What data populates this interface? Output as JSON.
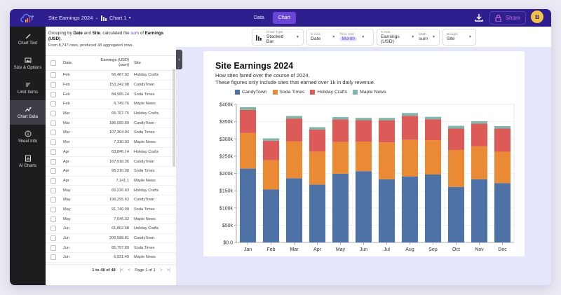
{
  "topbar": {
    "logo_icon": "cloud-chart-logo-icon",
    "sheet_name": "Site Earnings 2024",
    "chart_name": "Chart 1",
    "mode_tabs": [
      {
        "label": "Data",
        "active": false
      },
      {
        "label": "Chart",
        "active": true
      }
    ],
    "share_label": "Share",
    "avatar_initial": "B"
  },
  "sidebar": {
    "items": [
      {
        "label": "Chart Text",
        "icon": "pencil-icon",
        "active": false
      },
      {
        "label": "Size & Options",
        "icon": "image-icon",
        "active": false
      },
      {
        "label": "Limit Items",
        "icon": "filter-lines-icon",
        "active": false
      },
      {
        "label": "Chart Data",
        "icon": "scatter-icon",
        "active": true
      },
      {
        "label": "Sheet Info",
        "icon": "info-icon",
        "active": false
      },
      {
        "label": "AI Charts",
        "icon": "ai-chart-icon",
        "active": false
      }
    ]
  },
  "data_panel": {
    "desc_prefix": "Grouping by ",
    "desc_group1": "Date",
    "desc_and": " and ",
    "desc_group2": "Site",
    "desc_calc": ", calculated the ",
    "desc_func": "sum",
    "desc_of": " of ",
    "desc_field": "Earnings (USD)",
    "desc_end": ".",
    "rows_summary": "From 8,747 rows, produced 48 aggregated rows.",
    "columns": {
      "date": "Date",
      "value_line1": "Earnings (USD)",
      "value_line2": "(sum)",
      "site": "Site"
    },
    "rows": [
      {
        "date": "Feb",
        "value": "56,487.02",
        "site": "Holiday Crafts"
      },
      {
        "date": "Feb",
        "value": "153,342.98",
        "site": "CandyTown"
      },
      {
        "date": "Feb",
        "value": "84,985.24",
        "site": "Soda Times"
      },
      {
        "date": "Feb",
        "value": "6,749.76",
        "site": "Maple News"
      },
      {
        "date": "Mar",
        "value": "65,767.75",
        "site": "Holiday Crafts"
      },
      {
        "date": "Mar",
        "value": "186,089.89",
        "site": "CandyTown"
      },
      {
        "date": "Mar",
        "value": "107,304.94",
        "site": "Soda Times"
      },
      {
        "date": "Mar",
        "value": "7,310.03",
        "site": "Maple News"
      },
      {
        "date": "Apr",
        "value": "63,846.14",
        "site": "Holiday Crafts"
      },
      {
        "date": "Apr",
        "value": "167,918.36",
        "site": "CandyTown"
      },
      {
        "date": "Apr",
        "value": "95,210.08",
        "site": "Soda Times"
      },
      {
        "date": "Apr",
        "value": "7,141.1",
        "site": "Maple News"
      },
      {
        "date": "May",
        "value": "65,226.63",
        "site": "Holiday Crafts"
      },
      {
        "date": "May",
        "value": "199,255.63",
        "site": "CandyTown"
      },
      {
        "date": "May",
        "value": "91,740.99",
        "site": "Soda Times"
      },
      {
        "date": "May",
        "value": "7,046.32",
        "site": "Maple News"
      },
      {
        "date": "Jun",
        "value": "61,802.68",
        "site": "Holiday Crafts"
      },
      {
        "date": "Jun",
        "value": "206,588.81",
        "site": "CandyTown"
      },
      {
        "date": "Jun",
        "value": "85,797.89",
        "site": "Soda Times"
      },
      {
        "date": "Jun",
        "value": "6,931.49",
        "site": "Maple News"
      }
    ],
    "pager": {
      "range": "1 to 48 of 48",
      "page": "Page 1 of 1"
    }
  },
  "toolbar": {
    "chart_type": {
      "label": "Chart Type",
      "value": "Stacked Bar"
    },
    "x_axis": {
      "label": "X-Axis",
      "value": "Date"
    },
    "time_unit": {
      "label": "Time Unit",
      "value": "Month"
    },
    "y_axis": {
      "label": "Y-Axis",
      "value": "Earnings (USD)"
    },
    "math": {
      "label": "Math",
      "value": "sum"
    },
    "groups": {
      "label": "Groups",
      "value": "Site"
    }
  },
  "chart_data": {
    "type": "bar",
    "stacked": true,
    "title": "Site Earnings 2024",
    "subtitle_line1": "How sites fared over the course of 2024.",
    "subtitle_line2": "These figures only include sites that earned over 1k in daily revenue.",
    "xlabel": "",
    "ylabel": "",
    "categories": [
      "Jan",
      "Feb",
      "Mar",
      "Apr",
      "May",
      "Jun",
      "Jul",
      "Aug",
      "Sep",
      "Oct",
      "Nov",
      "Dec"
    ],
    "ylim": [
      0,
      400000
    ],
    "yticks": [
      0,
      50000,
      100000,
      150000,
      200000,
      250000,
      300000,
      350000,
      400000
    ],
    "ytick_labels": [
      "$0.0",
      "$50k",
      "$100k",
      "$150k",
      "$200k",
      "$250k",
      "$300k",
      "$350k",
      "$400k"
    ],
    "grid": true,
    "legend_position": "top",
    "series": [
      {
        "name": "CandyTown",
        "color": "#4e72a6",
        "values": [
          214000,
          153343,
          186090,
          167918,
          199256,
          206589,
          183000,
          191000,
          197000,
          161000,
          183000,
          172000
        ]
      },
      {
        "name": "Soda Times",
        "color": "#ea8a34",
        "values": [
          103000,
          84985,
          107305,
          95210,
          91741,
          85798,
          107000,
          106000,
          99000,
          107000,
          96000,
          91000
        ]
      },
      {
        "name": "Holiday Crafts",
        "color": "#dc5a58",
        "values": [
          67000,
          56487,
          65768,
          63846,
          65227,
          61803,
          64000,
          70000,
          61000,
          62000,
          65000,
          67000
        ]
      },
      {
        "name": "Maple News",
        "color": "#7fb6ab",
        "values": [
          8000,
          6750,
          7310,
          7141,
          7046,
          6931,
          7000,
          8000,
          7000,
          8000,
          7000,
          7000
        ]
      }
    ]
  }
}
